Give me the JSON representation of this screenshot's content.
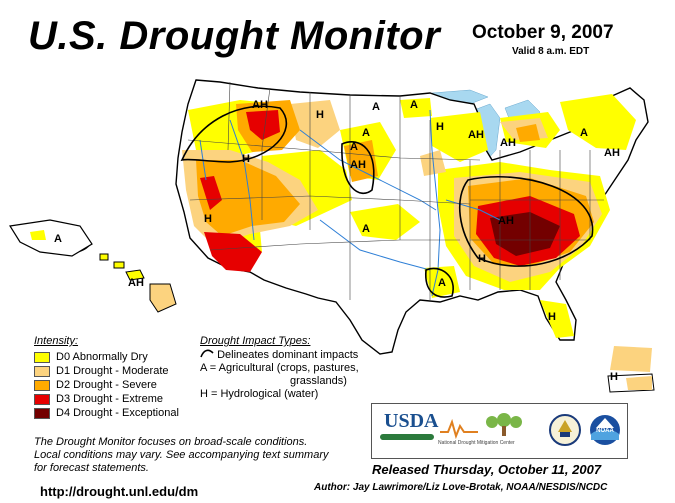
{
  "header": {
    "title": "U.S. Drought Monitor",
    "date": "October 9, 2007",
    "valid": "Valid 8 a.m. EDT"
  },
  "colors": {
    "d0": "#ffff00",
    "d1": "#fcd37f",
    "d2": "#ffaa00",
    "d3": "#e60000",
    "d4": "#730000",
    "water": "#a8d8f0",
    "rivers": "#2e7fd6"
  },
  "legend": {
    "title": "Intensity:",
    "items": [
      {
        "label": "D0 Abnormally Dry",
        "color": "#ffff00"
      },
      {
        "label": "D1 Drought - Moderate",
        "color": "#fcd37f"
      },
      {
        "label": "D2 Drought - Severe",
        "color": "#ffaa00"
      },
      {
        "label": "D3 Drought - Extreme",
        "color": "#e60000"
      },
      {
        "label": "D4 Drought - Exceptional",
        "color": "#730000"
      }
    ]
  },
  "impacts": {
    "title": "Drought Impact Types:",
    "delineates": "Delineates dominant impacts",
    "agri_1": "A = Agricultural (crops, pastures,",
    "agri_2": "grasslands)",
    "hydro": "H = Hydrological (water)"
  },
  "note": {
    "line1": "The Drought Monitor focuses on broad-scale conditions.",
    "line2": "Local conditions may vary. See accompanying text summary",
    "line3": "for forecast statements."
  },
  "map_labels": [
    "AH",
    "H",
    "A",
    "A",
    "H",
    "A",
    "A",
    "AH",
    "AH",
    "AH",
    "AH",
    "H",
    "H",
    "A",
    "AH",
    "A",
    "H",
    "A",
    "H",
    "A",
    "AH",
    "H"
  ],
  "footer": {
    "url": "http://drought.unl.edu/dm",
    "released": "Released Thursday, October 11, 2007",
    "author": "Author:  Jay Lawrimore/Liz Love-Brotak, NOAA/NESDIS/NCDC"
  },
  "logos": {
    "usda": "USDA",
    "ndmc": "National Drought Mitigation Center",
    "commerce": "commerce-seal-icon",
    "noaa": "NOAA"
  }
}
